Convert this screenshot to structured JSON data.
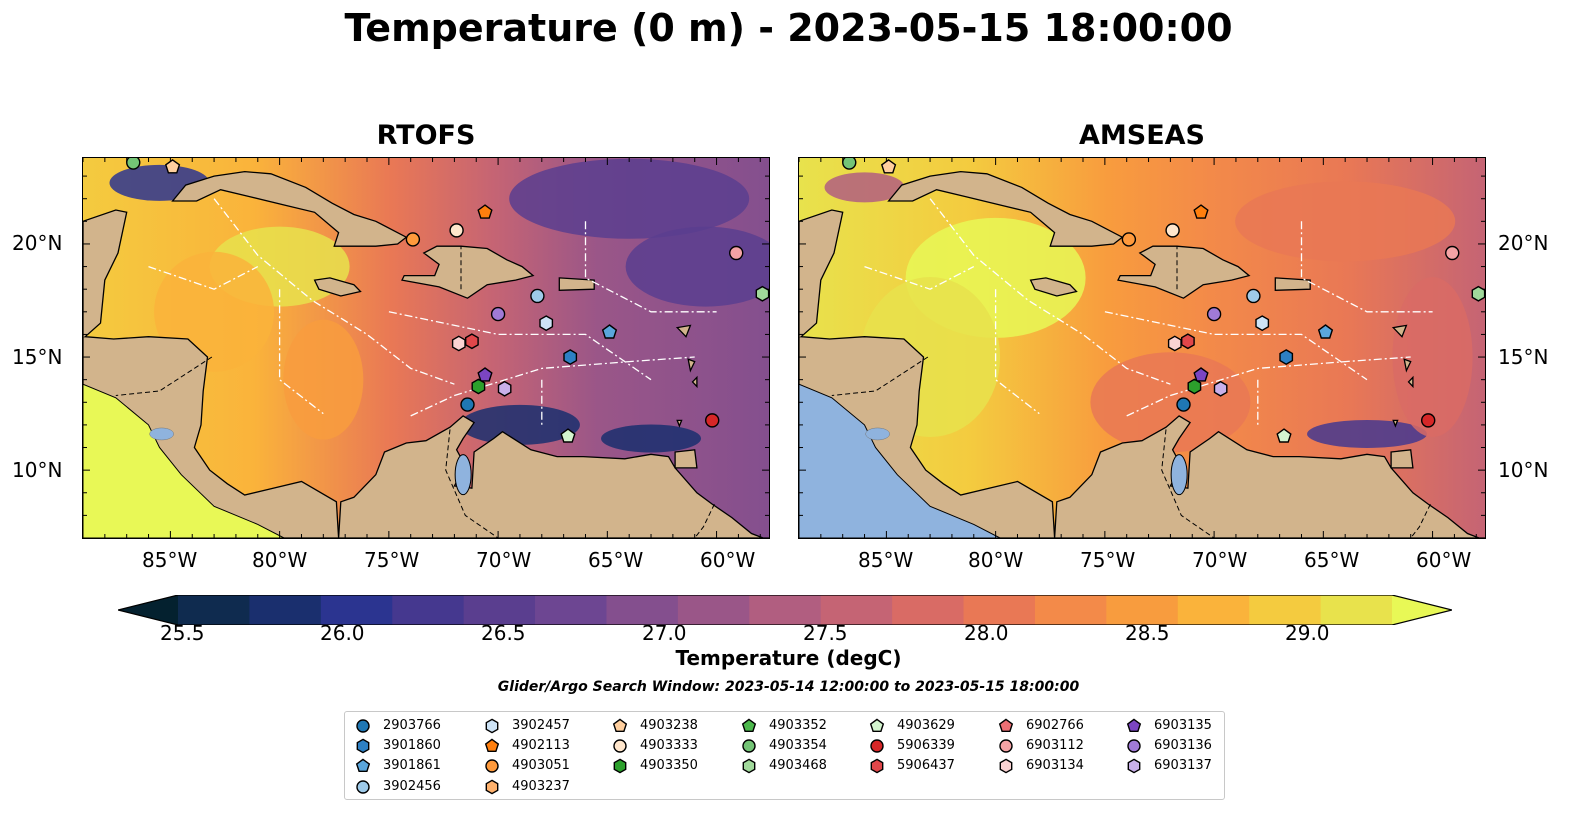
{
  "title": "Temperature (0 m) - 2023-05-15 18:00:00",
  "panels": [
    {
      "name": "RTOFS"
    },
    {
      "name": "AMSEAS"
    }
  ],
  "axes": {
    "lat_labels": [
      "20°N",
      "15°N",
      "10°N"
    ],
    "lon_labels": [
      "85°W",
      "80°W",
      "75°W",
      "70°W",
      "65°W",
      "60°W"
    ]
  },
  "colorbar": {
    "title": "Temperature (degC)",
    "ticks": [
      "25.5",
      "26.0",
      "26.5",
      "27.0",
      "27.5",
      "28.0",
      "28.5",
      "29.0"
    ],
    "colors": [
      "#04212f",
      "#0f2b4f",
      "#1a2f6e",
      "#2b3490",
      "#45388f",
      "#5a3e8f",
      "#6d4692",
      "#844f8e",
      "#9a5688",
      "#b15e80",
      "#c56474",
      "#d96b65",
      "#e97855",
      "#f38a49",
      "#f89c3e",
      "#fab33b",
      "#f4cb3f",
      "#e8e24c",
      "#e8f856"
    ],
    "land_color": "#d2b48c",
    "lake_color": "#8fb3de"
  },
  "search_window": "Glider/Argo Search Window: 2023-05-14 12:00:00 to 2023-05-15 18:00:00",
  "legend": [
    {
      "id": "2903766",
      "shape": "circle",
      "color": "#1f77b4"
    },
    {
      "id": "3901860",
      "shape": "hexagon",
      "color": "#2d80c4"
    },
    {
      "id": "3901861",
      "shape": "pentagon",
      "color": "#5aa6dc"
    },
    {
      "id": "3902456",
      "shape": "circle",
      "color": "#9ecae9"
    },
    {
      "id": "3902457",
      "shape": "hexagon",
      "color": "#cde3f6"
    },
    {
      "id": "4902113",
      "shape": "pentagon",
      "color": "#ff7f0e"
    },
    {
      "id": "4903051",
      "shape": "circle",
      "color": "#ff9a3c"
    },
    {
      "id": "4903237",
      "shape": "hexagon",
      "color": "#ffb26e"
    },
    {
      "id": "4903238",
      "shape": "pentagon",
      "color": "#ffcf9e"
    },
    {
      "id": "4903333",
      "shape": "circle",
      "color": "#ffe6cc"
    },
    {
      "id": "4903350",
      "shape": "hexagon",
      "color": "#2ca02c"
    },
    {
      "id": "4903352",
      "shape": "pentagon",
      "color": "#4cb84c"
    },
    {
      "id": "4903354",
      "shape": "circle",
      "color": "#74c476"
    },
    {
      "id": "4903468",
      "shape": "hexagon",
      "color": "#a1d99b"
    },
    {
      "id": "4903629",
      "shape": "pentagon",
      "color": "#d4f5cf"
    },
    {
      "id": "5906339",
      "shape": "circle",
      "color": "#d62728"
    },
    {
      "id": "5906437",
      "shape": "hexagon",
      "color": "#e0474a"
    },
    {
      "id": "6902766",
      "shape": "pentagon",
      "color": "#ec6f74"
    },
    {
      "id": "6903112",
      "shape": "circle",
      "color": "#f5a3a5"
    },
    {
      "id": "6903134",
      "shape": "hexagon",
      "color": "#fbd3d3"
    },
    {
      "id": "6903135",
      "shape": "pentagon",
      "color": "#7b45c2"
    },
    {
      "id": "6903136",
      "shape": "circle",
      "color": "#a07ad6"
    },
    {
      "id": "6903137",
      "shape": "hexagon",
      "color": "#c9b0ea"
    }
  ],
  "floats": [
    {
      "id": "4903354",
      "lon": -86.7,
      "lat": 23.6
    },
    {
      "id": "4903238",
      "lon": -84.9,
      "lat": 23.4
    },
    {
      "id": "4903051",
      "lon": -73.9,
      "lat": 20.2
    },
    {
      "id": "4903333",
      "lon": -71.9,
      "lat": 20.6
    },
    {
      "id": "4902113",
      "lon": -70.6,
      "lat": 21.4
    },
    {
      "id": "6903112",
      "lon": -59.1,
      "lat": 19.6
    },
    {
      "id": "3902456",
      "lon": -68.2,
      "lat": 17.7
    },
    {
      "id": "6903136",
      "lon": -70.0,
      "lat": 16.9
    },
    {
      "id": "3902457",
      "lon": -67.8,
      "lat": 16.5
    },
    {
      "id": "3901861",
      "lon": -64.9,
      "lat": 16.1
    },
    {
      "id": "6903134",
      "lon": -71.8,
      "lat": 15.6
    },
    {
      "id": "5906437",
      "lon": -71.2,
      "lat": 15.7
    },
    {
      "id": "3901860",
      "lon": -66.7,
      "lat": 15.0
    },
    {
      "id": "6903135",
      "lon": -70.6,
      "lat": 14.2
    },
    {
      "id": "4903350",
      "lon": -70.9,
      "lat": 13.7
    },
    {
      "id": "6903137",
      "lon": -69.7,
      "lat": 13.6
    },
    {
      "id": "2903766",
      "lon": -71.4,
      "lat": 12.9
    },
    {
      "id": "5906339",
      "lon": -60.2,
      "lat": 12.2
    },
    {
      "id": "4903629",
      "lon": -66.8,
      "lat": 11.5
    },
    {
      "id": "4903468",
      "lon": -57.9,
      "lat": 17.8
    }
  ]
}
